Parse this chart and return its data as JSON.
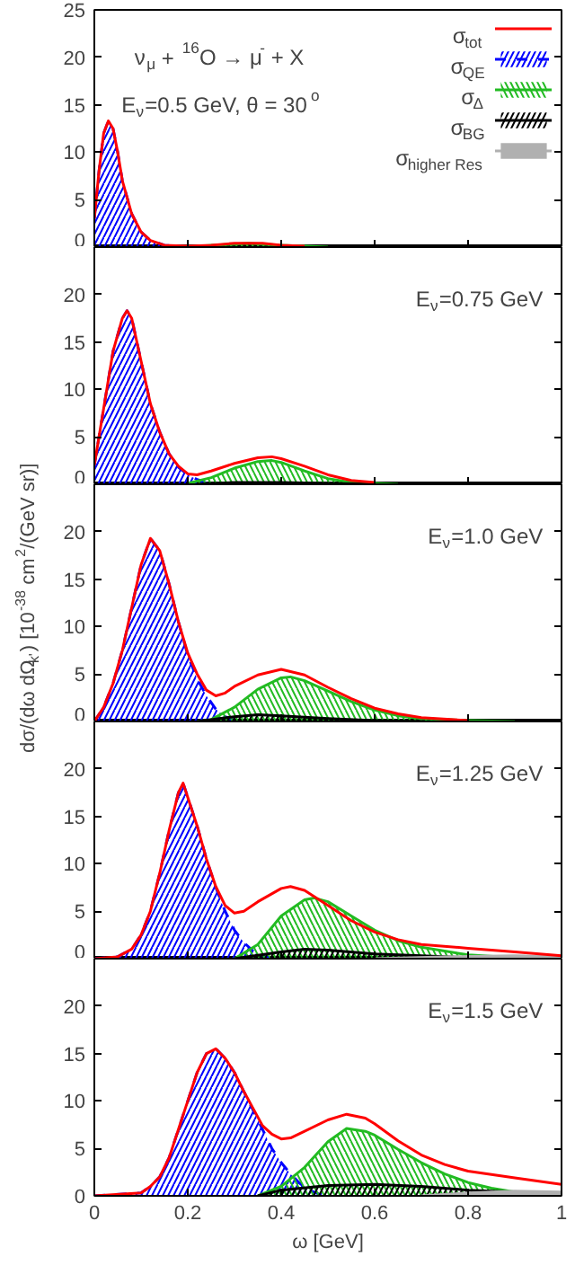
{
  "chart_data": [
    {
      "type": "area",
      "annotations": [
        "ν$_{μ}$ + $^{16}$O → μ$^{-}$ + X",
        "E$_{ν}$=0.5 GeV, θ = 30$^{o}$"
      ],
      "xlim": [
        0,
        1
      ],
      "xticks": [
        0,
        0.2,
        0.4,
        0.6,
        0.8,
        1
      ],
      "ylim": [
        0,
        25
      ],
      "yticks": [
        0,
        5,
        10,
        15,
        20,
        25
      ],
      "tick_labels": "y",
      "legend": "top right",
      "series": [
        {
          "name": "σ$_{tot}$",
          "type": "line",
          "color": "#ff0000",
          "x": [
            0,
            0.01,
            0.02,
            0.03,
            0.04,
            0.05,
            0.06,
            0.08,
            0.1,
            0.12,
            0.15,
            0.2,
            0.25,
            0.3,
            0.33,
            0.36,
            0.4,
            0.45
          ],
          "values": [
            3,
            8,
            12,
            13.3,
            12.5,
            10,
            7,
            3.5,
            1.6,
            0.7,
            0.2,
            0.1,
            0.2,
            0.4,
            0.4,
            0.4,
            0.2,
            0.1
          ]
        },
        {
          "name": "σ$_{QE}$",
          "color": "#0000ff",
          "line_style": "dashed",
          "x": [
            0,
            0.01,
            0.02,
            0.03,
            0.04,
            0.05,
            0.06,
            0.08,
            0.1,
            0.12,
            0.15,
            0.2
          ],
          "values": [
            3,
            8,
            12,
            13.3,
            12.5,
            10,
            7,
            3.5,
            1.6,
            0.7,
            0.2,
            0
          ]
        },
        {
          "name": "σ$_{Δ}$",
          "color": "#22bb22",
          "x": [
            0.2,
            0.25,
            0.3,
            0.33,
            0.36,
            0.4,
            0.45,
            0.5
          ],
          "values": [
            0,
            0.2,
            0.3,
            0.4,
            0.3,
            0.2,
            0.1,
            0
          ]
        },
        {
          "name": "σ$_{BG}$",
          "color": "#000000"
        },
        {
          "name": "σ$_{higher Res}$",
          "color": "#b0b0b0"
        }
      ]
    },
    {
      "type": "area",
      "annotations": [
        "E$_{ν}$=0.75 GeV"
      ],
      "xlim": [
        0,
        1
      ],
      "xticks": [
        0,
        0.2,
        0.4,
        0.6,
        0.8,
        1
      ],
      "ylim": [
        0,
        25
      ],
      "yticks": [
        0,
        5,
        10,
        15,
        20
      ],
      "tick_labels": "y",
      "series": [
        {
          "type": "line",
          "color": "#ff0000",
          "x": [
            0,
            0.02,
            0.04,
            0.06,
            0.07,
            0.08,
            0.1,
            0.12,
            0.14,
            0.16,
            0.18,
            0.2,
            0.22,
            0.25,
            0.3,
            0.35,
            0.38,
            0.4,
            0.45,
            0.5,
            0.55,
            0.6
          ],
          "values": [
            2,
            8,
            14,
            17.5,
            18.3,
            17.5,
            13,
            8.5,
            5.5,
            3.2,
            1.9,
            1.1,
            1.0,
            1.4,
            2.2,
            2.8,
            2.9,
            2.7,
            1.9,
            1.0,
            0.4,
            0.2
          ]
        },
        {
          "color": "#0000ff",
          "line_style": "dashed",
          "x": [
            0,
            0.02,
            0.04,
            0.06,
            0.07,
            0.08,
            0.1,
            0.12,
            0.14,
            0.16,
            0.18,
            0.2,
            0.22,
            0.25,
            0.28
          ],
          "values": [
            2,
            8,
            14,
            17.5,
            18.3,
            17.5,
            13,
            8.5,
            5.5,
            3.2,
            1.8,
            1,
            0.5,
            0.1,
            0
          ]
        },
        {
          "color": "#22bb22",
          "x": [
            0.2,
            0.25,
            0.3,
            0.35,
            0.38,
            0.4,
            0.45,
            0.5,
            0.55,
            0.6,
            0.65
          ],
          "values": [
            0.1,
            0.7,
            1.7,
            2.4,
            2.5,
            2.3,
            1.4,
            0.6,
            0.2,
            0.1,
            0
          ]
        },
        {
          "color": "#000000",
          "x": [
            0.22,
            0.3,
            0.4,
            0.5,
            0.6
          ],
          "values": [
            0,
            0.2,
            0.2,
            0.1,
            0
          ]
        }
      ]
    },
    {
      "type": "area",
      "annotations": [
        "E$_{ν}$=1.0 GeV"
      ],
      "ylabel": "dσ/(dω dΩ$_{k'}$) [10$^{-38}$ cm$^{2}$/(GeV sr)]",
      "xlim": [
        0,
        1
      ],
      "xticks": [
        0,
        0.2,
        0.4,
        0.6,
        0.8,
        1
      ],
      "ylim": [
        0,
        25
      ],
      "yticks": [
        0,
        5,
        10,
        15,
        20
      ],
      "tick_labels": "y",
      "series": [
        {
          "type": "line",
          "color": "#ff0000",
          "x": [
            0,
            0.02,
            0.04,
            0.06,
            0.08,
            0.1,
            0.12,
            0.14,
            0.16,
            0.18,
            0.2,
            0.22,
            0.24,
            0.26,
            0.28,
            0.3,
            0.35,
            0.4,
            0.45,
            0.5,
            0.55,
            0.6,
            0.65,
            0.7,
            0.8
          ],
          "values": [
            0,
            1.5,
            4,
            7.5,
            12,
            16.5,
            19.3,
            18,
            14.5,
            10.5,
            7.2,
            5,
            3.3,
            2.7,
            3,
            3.7,
            4.9,
            5.5,
            4.9,
            3.6,
            2.4,
            1.4,
            0.8,
            0.4,
            0.1
          ]
        },
        {
          "color": "#0000ff",
          "line_style": "dashed",
          "x": [
            0,
            0.02,
            0.04,
            0.06,
            0.08,
            0.1,
            0.12,
            0.14,
            0.16,
            0.18,
            0.2,
            0.22,
            0.24,
            0.26,
            0.28,
            0.3,
            0.32
          ],
          "values": [
            0,
            1.5,
            4,
            7.5,
            12,
            16.5,
            19.3,
            18,
            14.5,
            10.5,
            7,
            4.5,
            2.7,
            1.3,
            0.5,
            0.1,
            0
          ]
        },
        {
          "color": "#22bb22",
          "x": [
            0.22,
            0.25,
            0.3,
            0.35,
            0.4,
            0.42,
            0.45,
            0.5,
            0.55,
            0.6,
            0.65,
            0.7,
            0.8,
            0.9
          ],
          "values": [
            0,
            0.2,
            1.5,
            3.4,
            4.6,
            4.7,
            4.3,
            3.2,
            2.1,
            1.2,
            0.6,
            0.3,
            0.1,
            0
          ]
        },
        {
          "color": "#000000",
          "x": [
            0.22,
            0.3,
            0.35,
            0.4,
            0.5,
            0.6,
            0.7
          ],
          "values": [
            0,
            0.5,
            0.7,
            0.6,
            0.3,
            0.1,
            0
          ]
        }
      ]
    },
    {
      "type": "area",
      "annotations": [
        "E$_{ν}$=1.25 GeV"
      ],
      "xlim": [
        0,
        1
      ],
      "xticks": [
        0,
        0.2,
        0.4,
        0.6,
        0.8,
        1
      ],
      "ylim": [
        0,
        25
      ],
      "yticks": [
        0,
        5,
        10,
        15,
        20
      ],
      "tick_labels": "y",
      "series": [
        {
          "type": "line",
          "color": "#ff0000",
          "x": [
            0,
            0.05,
            0.08,
            0.1,
            0.12,
            0.14,
            0.16,
            0.18,
            0.19,
            0.2,
            0.22,
            0.24,
            0.26,
            0.28,
            0.3,
            0.32,
            0.35,
            0.4,
            0.42,
            0.45,
            0.5,
            0.55,
            0.6,
            0.65,
            0.7,
            0.8,
            0.9,
            1
          ],
          "values": [
            0,
            0.2,
            1,
            2.5,
            5,
            9,
            13.5,
            17.5,
            18.5,
            17,
            14,
            10.5,
            7.6,
            5.6,
            4.8,
            5,
            6,
            7.4,
            7.6,
            7.2,
            5.6,
            4,
            2.8,
            2,
            1.5,
            1.1,
            0.7,
            0.3
          ]
        },
        {
          "color": "#0000ff",
          "line_style": "dashed",
          "x": [
            0,
            0.05,
            0.08,
            0.1,
            0.12,
            0.14,
            0.16,
            0.18,
            0.19,
            0.2,
            0.22,
            0.24,
            0.26,
            0.28,
            0.3,
            0.32,
            0.34,
            0.36,
            0.38
          ],
          "values": [
            0,
            0.2,
            1,
            2.5,
            5,
            9,
            13.5,
            17.5,
            18.5,
            17,
            14,
            10.5,
            7.5,
            5,
            3,
            1.7,
            0.8,
            0.3,
            0
          ]
        },
        {
          "color": "#22bb22",
          "x": [
            0.3,
            0.35,
            0.4,
            0.45,
            0.47,
            0.5,
            0.55,
            0.6,
            0.65,
            0.7,
            0.8,
            0.9,
            1
          ],
          "values": [
            0,
            1.5,
            4.5,
            6.2,
            6.4,
            6,
            4.5,
            3,
            1.9,
            1.2,
            0.4,
            0.1,
            0
          ]
        },
        {
          "color": "#000000",
          "x": [
            0.3,
            0.4,
            0.45,
            0.5,
            0.6,
            0.7,
            0.8,
            1
          ],
          "values": [
            0,
            0.7,
            1,
            0.9,
            0.5,
            0.3,
            0.1,
            0
          ]
        },
        {
          "color": "#b0b0b0",
          "x": [
            0.6,
            0.75,
            0.9,
            1
          ],
          "values": [
            0,
            0.2,
            0.3,
            0.2
          ]
        }
      ]
    },
    {
      "type": "area",
      "annotations": [
        "E$_{ν}$=1.5 GeV"
      ],
      "xlabel": "ω [GeV]",
      "xlim": [
        0,
        1
      ],
      "xticks": [
        0,
        0.2,
        0.4,
        0.6,
        0.8,
        1
      ],
      "ylim": [
        0,
        25
      ],
      "yticks": [
        0,
        5,
        10,
        15,
        20
      ],
      "series": [
        {
          "type": "line",
          "color": "#ff0000",
          "x": [
            0,
            0.1,
            0.12,
            0.14,
            0.16,
            0.18,
            0.2,
            0.22,
            0.24,
            0.26,
            0.28,
            0.3,
            0.32,
            0.34,
            0.36,
            0.38,
            0.4,
            0.42,
            0.45,
            0.5,
            0.54,
            0.58,
            0.6,
            0.65,
            0.7,
            0.75,
            0.8,
            0.9,
            1
          ],
          "values": [
            0,
            0.3,
            1,
            2,
            4,
            7,
            10,
            13,
            15,
            15.5,
            14.5,
            13,
            11,
            9.2,
            7.4,
            6.5,
            6,
            6.1,
            6.8,
            8,
            8.6,
            8.2,
            7.6,
            5.8,
            4.3,
            3.3,
            2.6,
            1.9,
            1.2
          ]
        },
        {
          "color": "#0000ff",
          "line_style": "dashed",
          "x": [
            0,
            0.1,
            0.12,
            0.14,
            0.16,
            0.18,
            0.2,
            0.22,
            0.24,
            0.26,
            0.28,
            0.3,
            0.32,
            0.34,
            0.36,
            0.38,
            0.4,
            0.42,
            0.44,
            0.46,
            0.48,
            0.5
          ],
          "values": [
            0,
            0.3,
            1,
            2,
            4,
            7,
            10,
            13,
            15,
            15.5,
            14.5,
            13,
            11,
            9,
            7,
            5,
            3.5,
            2.3,
            1.3,
            0.6,
            0.2,
            0
          ]
        },
        {
          "color": "#22bb22",
          "x": [
            0.35,
            0.4,
            0.45,
            0.5,
            0.54,
            0.58,
            0.6,
            0.65,
            0.7,
            0.75,
            0.8,
            0.85,
            0.9,
            1
          ],
          "values": [
            0,
            1,
            3,
            5.7,
            7.1,
            6.8,
            6.4,
            4.9,
            3.5,
            2.3,
            1.4,
            0.8,
            0.4,
            0.1
          ]
        },
        {
          "color": "#000000",
          "x": [
            0.35,
            0.4,
            0.5,
            0.6,
            0.7,
            0.8,
            0.9,
            1
          ],
          "values": [
            0,
            0.6,
            1.1,
            1.2,
            1,
            0.6,
            0.4,
            0.3
          ]
        },
        {
          "color": "#b0b0b0",
          "x": [
            0.7,
            0.8,
            0.9,
            1
          ],
          "values": [
            0,
            0.3,
            0.5,
            0.4
          ]
        }
      ]
    }
  ]
}
